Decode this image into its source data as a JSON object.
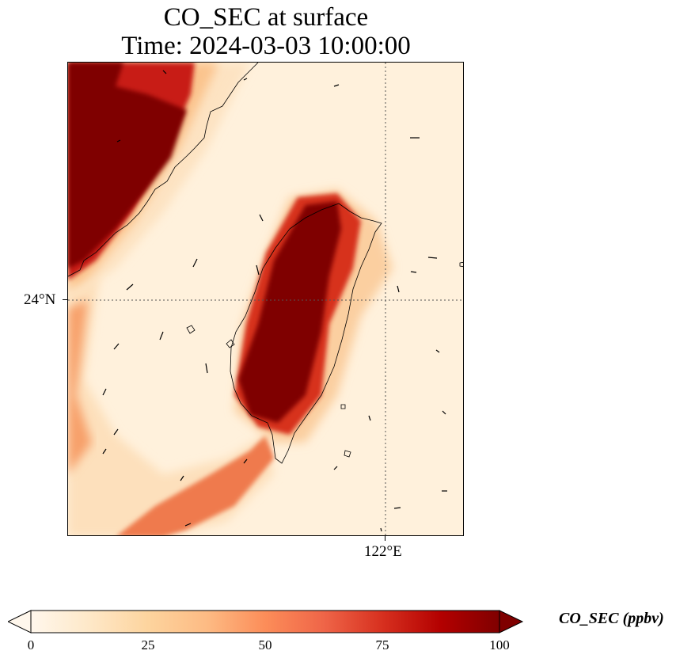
{
  "title": {
    "line1": "CO_SEC at surface",
    "line2": "Time: 2024-03-03 10:00:00"
  },
  "map": {
    "lat_tick": "24°N",
    "lon_tick": "122°E",
    "colors": {
      "background": "#fff1dc",
      "light": "#fde0bc",
      "mid": "#f6925a",
      "high": "#d7301f",
      "max": "#7f0000"
    }
  },
  "colorbar": {
    "label": "CO_SEC (ppbv)",
    "ticks": [
      "0",
      "25",
      "50",
      "75",
      "100"
    ],
    "range": [
      0,
      100
    ],
    "extend": "both",
    "colormap": "OrRd"
  }
}
